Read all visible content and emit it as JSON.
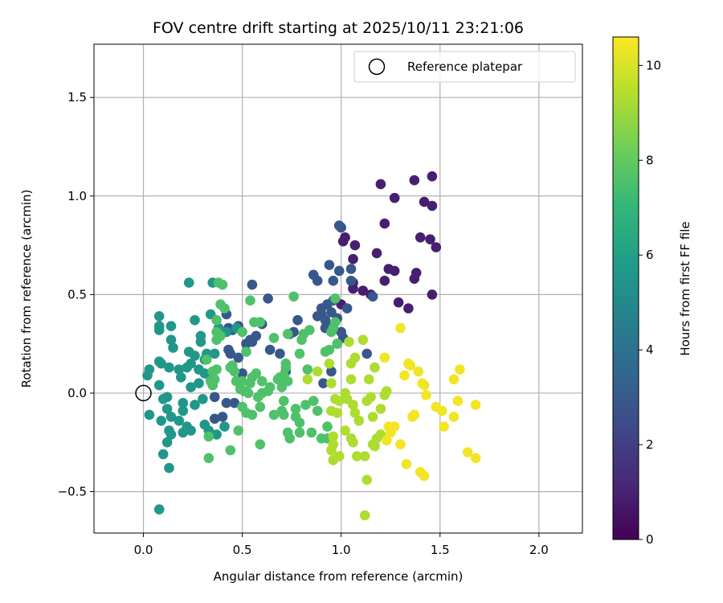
{
  "chart_data": {
    "type": "scatter",
    "title": "FOV centre drift starting at 2025/10/11 23:21:06",
    "xlabel": "Angular distance from reference (arcmin)",
    "ylabel": "Rotation from reference (arcmin)",
    "xlim": [
      -0.25,
      2.22
    ],
    "ylim": [
      -0.71,
      1.77
    ],
    "xticks": [
      0.0,
      0.5,
      1.0,
      1.5,
      2.0
    ],
    "xtick_labels": [
      "0.0",
      "0.5",
      "1.0",
      "1.5",
      "2.0"
    ],
    "yticks": [
      -0.5,
      0.0,
      0.5,
      1.0,
      1.5
    ],
    "ytick_labels": [
      "−0.5",
      "0.0",
      "0.5",
      "1.0",
      "1.5"
    ],
    "grid": true,
    "legend": {
      "position": "top-right",
      "entries": [
        "Reference platepar"
      ]
    },
    "reference_point": {
      "x": 0.0,
      "y": 0.0,
      "label": "Reference platepar"
    },
    "colorbar": {
      "label": "Hours from first FF file",
      "colormap": "viridis",
      "range": [
        0,
        10.6
      ],
      "ticks": [
        0,
        2,
        4,
        6,
        8,
        10
      ],
      "tick_labels": [
        "0",
        "2",
        "4",
        "6",
        "8",
        "10"
      ]
    },
    "viridis_stops": [
      "#440154",
      "#482878",
      "#3e4989",
      "#31688e",
      "#26828e",
      "#1f9e89",
      "#35b779",
      "#6ece58",
      "#b5de2b",
      "#fde725"
    ],
    "series": [
      {
        "name": "hours_0_2",
        "points": [
          [
            1.2,
            1.06
          ],
          [
            1.37,
            1.08
          ],
          [
            1.46,
            1.1
          ],
          [
            1.27,
            0.99
          ],
          [
            1.42,
            0.97
          ],
          [
            1.46,
            0.95
          ],
          [
            1.22,
            0.86
          ],
          [
            1.4,
            0.79
          ],
          [
            1.45,
            0.78
          ],
          [
            1.48,
            0.74
          ],
          [
            1.18,
            0.71
          ],
          [
            1.24,
            0.63
          ],
          [
            1.27,
            0.62
          ],
          [
            1.38,
            0.61
          ],
          [
            1.37,
            0.58
          ],
          [
            1.22,
            0.57
          ],
          [
            1.06,
            0.68
          ],
          [
            1.07,
            0.75
          ],
          [
            1.02,
            0.79
          ],
          [
            1.01,
            0.77
          ],
          [
            1.06,
            0.56
          ],
          [
            1.06,
            0.53
          ],
          [
            1.11,
            0.52
          ],
          [
            1.15,
            0.5
          ],
          [
            1.29,
            0.46
          ],
          [
            1.34,
            0.43
          ],
          [
            1.46,
            0.5
          ],
          [
            1.0,
            0.45
          ]
        ]
      },
      {
        "name": "hours_2_4",
        "points": [
          [
            0.99,
            0.85
          ],
          [
            1.0,
            0.84
          ],
          [
            1.05,
            0.63
          ],
          [
            0.86,
            0.6
          ],
          [
            0.94,
            0.65
          ],
          [
            0.88,
            0.57
          ],
          [
            0.96,
            0.57
          ],
          [
            0.99,
            0.62
          ],
          [
            1.05,
            0.57
          ],
          [
            0.96,
            0.47
          ],
          [
            0.93,
            0.45
          ],
          [
            0.9,
            0.43
          ],
          [
            0.95,
            0.41
          ],
          [
            0.9,
            0.4
          ],
          [
            0.88,
            0.39
          ],
          [
            0.92,
            0.37
          ],
          [
            0.98,
            0.38
          ],
          [
            0.96,
            0.34
          ],
          [
            0.92,
            0.33
          ],
          [
            1.0,
            0.31
          ],
          [
            1.01,
            0.28
          ],
          [
            0.98,
            0.25
          ],
          [
            1.03,
            0.43
          ],
          [
            1.16,
            0.49
          ],
          [
            1.13,
            0.2
          ],
          [
            0.63,
            0.48
          ],
          [
            0.55,
            0.55
          ],
          [
            0.78,
            0.37
          ],
          [
            0.57,
            0.29
          ],
          [
            0.54,
            0.27
          ],
          [
            0.52,
            0.25
          ],
          [
            0.48,
            0.34
          ],
          [
            0.64,
            0.22
          ],
          [
            0.69,
            0.2
          ],
          [
            0.72,
            0.11
          ],
          [
            0.5,
            0.1
          ],
          [
            0.47,
            0.06
          ],
          [
            0.6,
            0.35
          ],
          [
            0.95,
            0.11
          ],
          [
            0.91,
            0.05
          ],
          [
            0.76,
            0.31
          ],
          [
            0.74,
            0.3
          ],
          [
            0.43,
            0.33
          ],
          [
            0.45,
            0.32
          ],
          [
            0.42,
            0.4
          ],
          [
            0.55,
            0.26
          ],
          [
            0.44,
            0.2
          ],
          [
            0.48,
            0.18
          ],
          [
            0.43,
            0.22
          ],
          [
            0.46,
            -0.05
          ],
          [
            0.36,
            -0.13
          ],
          [
            0.4,
            -0.12
          ],
          [
            0.42,
            -0.05
          ],
          [
            0.36,
            -0.02
          ]
        ]
      },
      {
        "name": "hours_4_6",
        "points": [
          [
            0.23,
            0.56
          ],
          [
            0.35,
            0.56
          ],
          [
            0.26,
            0.37
          ],
          [
            0.08,
            0.39
          ],
          [
            0.08,
            0.34
          ],
          [
            0.08,
            0.32
          ],
          [
            0.14,
            0.34
          ],
          [
            0.34,
            0.4
          ],
          [
            0.38,
            0.33
          ],
          [
            0.42,
            0.31
          ],
          [
            0.47,
            0.33
          ],
          [
            0.29,
            0.26
          ],
          [
            0.14,
            0.27
          ],
          [
            0.15,
            0.23
          ],
          [
            0.23,
            0.21
          ],
          [
            0.36,
            0.2
          ],
          [
            0.26,
            0.19
          ],
          [
            0.31,
            0.17
          ],
          [
            0.32,
            0.2
          ],
          [
            0.08,
            0.16
          ],
          [
            0.09,
            0.15
          ],
          [
            0.24,
            0.15
          ],
          [
            0.18,
            0.12
          ],
          [
            0.22,
            0.13
          ],
          [
            0.28,
            0.12
          ],
          [
            0.31,
            0.1
          ],
          [
            0.13,
            0.13
          ],
          [
            0.03,
            0.12
          ],
          [
            0.02,
            0.09
          ],
          [
            0.19,
            0.08
          ],
          [
            0.34,
            0.08
          ],
          [
            0.08,
            0.04
          ],
          [
            0.35,
            0.04
          ],
          [
            0.24,
            0.03
          ],
          [
            0.28,
            0.05
          ],
          [
            0.12,
            -0.02
          ],
          [
            0.1,
            -0.03
          ],
          [
            0.3,
            -0.03
          ],
          [
            0.2,
            -0.05
          ],
          [
            0.26,
            -0.06
          ],
          [
            0.03,
            -0.11
          ],
          [
            0.14,
            -0.12
          ],
          [
            0.12,
            -0.08
          ],
          [
            0.2,
            -0.09
          ],
          [
            0.18,
            -0.14
          ],
          [
            0.22,
            -0.17
          ],
          [
            0.24,
            -0.19
          ],
          [
            0.2,
            -0.2
          ],
          [
            0.13,
            -0.19
          ],
          [
            0.14,
            -0.21
          ],
          [
            0.09,
            -0.14
          ],
          [
            0.12,
            -0.25
          ],
          [
            0.1,
            -0.31
          ],
          [
            0.13,
            -0.38
          ],
          [
            0.31,
            -0.16
          ],
          [
            0.33,
            -0.19
          ],
          [
            0.41,
            -0.17
          ],
          [
            0.37,
            -0.21
          ],
          [
            0.08,
            -0.59
          ],
          [
            0.29,
            0.29
          ]
        ]
      },
      {
        "name": "hours_6_8",
        "points": [
          [
            0.38,
            0.56
          ],
          [
            0.4,
            0.55
          ],
          [
            0.39,
            0.45
          ],
          [
            0.41,
            0.43
          ],
          [
            0.37,
            0.37
          ],
          [
            0.37,
            0.31
          ],
          [
            0.39,
            0.29
          ],
          [
            0.37,
            0.27
          ],
          [
            0.5,
            0.31
          ],
          [
            0.52,
            0.21
          ],
          [
            0.32,
            0.17
          ],
          [
            0.35,
            0.11
          ],
          [
            0.36,
            0.07
          ],
          [
            0.37,
            0.12
          ],
          [
            0.45,
            0.14
          ],
          [
            0.46,
            0.11
          ],
          [
            0.47,
            0.06
          ],
          [
            0.44,
            0.13
          ],
          [
            0.5,
            0.06
          ],
          [
            0.49,
            0.02
          ],
          [
            0.51,
            0.01
          ],
          [
            0.34,
            0.06
          ],
          [
            0.35,
            0.04
          ],
          [
            0.55,
            0.08
          ],
          [
            0.57,
            0.1
          ],
          [
            0.54,
            0.05
          ],
          [
            0.53,
            0.0
          ],
          [
            0.5,
            -0.07
          ],
          [
            0.52,
            -0.1
          ],
          [
            0.55,
            -0.11
          ],
          [
            0.58,
            -0.02
          ],
          [
            0.59,
            -0.07
          ],
          [
            0.59,
            -0.26
          ],
          [
            0.48,
            -0.19
          ],
          [
            0.44,
            -0.29
          ],
          [
            0.33,
            -0.22
          ],
          [
            0.33,
            -0.33
          ],
          [
            0.54,
            0.47
          ],
          [
            0.56,
            0.36
          ],
          [
            0.59,
            0.36
          ],
          [
            0.66,
            0.28
          ],
          [
            0.73,
            0.3
          ],
          [
            0.72,
            0.15
          ],
          [
            0.79,
            0.2
          ],
          [
            0.72,
            0.13
          ],
          [
            0.71,
            0.09
          ],
          [
            0.69,
            0.08
          ],
          [
            0.68,
            0.07
          ],
          [
            0.6,
            0.06
          ],
          [
            0.6,
            0.0
          ],
          [
            0.63,
            0.01
          ],
          [
            0.64,
            0.03
          ],
          [
            0.7,
            0.03
          ],
          [
            0.73,
            0.06
          ],
          [
            0.71,
            -0.04
          ],
          [
            0.7,
            -0.09
          ],
          [
            0.71,
            -0.11
          ],
          [
            0.66,
            -0.11
          ],
          [
            0.73,
            -0.2
          ],
          [
            0.74,
            -0.23
          ],
          [
            0.77,
            -0.08
          ],
          [
            0.77,
            -0.12
          ],
          [
            0.79,
            -0.15
          ],
          [
            0.79,
            -0.2
          ],
          [
            0.82,
            -0.06
          ],
          [
            0.76,
            0.49
          ],
          [
            0.81,
            0.3
          ],
          [
            0.84,
            0.32
          ],
          [
            0.8,
            0.27
          ],
          [
            0.83,
            0.12
          ],
          [
            0.85,
            -0.2
          ],
          [
            0.86,
            -0.04
          ],
          [
            0.88,
            -0.09
          ],
          [
            0.9,
            -0.23
          ],
          [
            0.93,
            -0.23
          ],
          [
            0.93,
            -0.17
          ],
          [
            0.94,
            0.22
          ],
          [
            0.92,
            0.21
          ],
          [
            0.95,
            0.31
          ],
          [
            0.96,
            0.33
          ],
          [
            0.97,
            0.48
          ],
          [
            0.97,
            0.36
          ],
          [
            0.98,
            0.25
          ]
        ]
      },
      {
        "name": "hours_8_10",
        "points": [
          [
            0.94,
            0.15
          ],
          [
            0.95,
            0.05
          ],
          [
            0.97,
            -0.03
          ],
          [
            0.99,
            -0.04
          ],
          [
            0.95,
            -0.09
          ],
          [
            0.98,
            -0.1
          ],
          [
            0.96,
            -0.22
          ],
          [
            0.96,
            -0.26
          ],
          [
            0.95,
            -0.29
          ],
          [
            0.96,
            -0.34
          ],
          [
            0.99,
            -0.32
          ],
          [
            1.02,
            0.0
          ],
          [
            1.03,
            -0.03
          ],
          [
            1.05,
            0.07
          ],
          [
            1.06,
            -0.06
          ],
          [
            1.07,
            -0.1
          ],
          [
            1.09,
            -0.14
          ],
          [
            1.05,
            -0.23
          ],
          [
            1.06,
            -0.25
          ],
          [
            1.02,
            -0.19
          ],
          [
            1.08,
            -0.32
          ],
          [
            1.12,
            -0.32
          ],
          [
            1.13,
            -0.44
          ],
          [
            1.12,
            -0.62
          ],
          [
            1.16,
            -0.26
          ],
          [
            1.17,
            -0.27
          ],
          [
            1.18,
            -0.23
          ],
          [
            1.2,
            -0.21
          ],
          [
            1.16,
            -0.12
          ],
          [
            1.2,
            -0.08
          ],
          [
            1.22,
            -0.01
          ],
          [
            1.23,
            0.01
          ],
          [
            1.17,
            0.13
          ],
          [
            1.14,
            0.07
          ],
          [
            1.11,
            0.27
          ],
          [
            1.05,
            0.15
          ],
          [
            1.07,
            0.18
          ],
          [
            1.13,
            -0.04
          ],
          [
            1.15,
            -0.02
          ],
          [
            1.04,
            0.26
          ],
          [
            0.83,
            0.07
          ],
          [
            0.88,
            0.11
          ]
        ]
      },
      {
        "name": "hours_10_plus",
        "points": [
          [
            1.22,
            0.18
          ],
          [
            1.3,
            0.33
          ],
          [
            1.35,
            0.14
          ],
          [
            1.32,
            0.09
          ],
          [
            1.34,
            0.15
          ],
          [
            1.39,
            0.11
          ],
          [
            1.41,
            0.05
          ],
          [
            1.42,
            0.04
          ],
          [
            1.43,
            -0.01
          ],
          [
            1.36,
            -0.12
          ],
          [
            1.37,
            -0.11
          ],
          [
            1.24,
            -0.17
          ],
          [
            1.27,
            -0.17
          ],
          [
            1.25,
            -0.2
          ],
          [
            1.23,
            -0.24
          ],
          [
            1.3,
            -0.26
          ],
          [
            1.33,
            -0.36
          ],
          [
            1.4,
            -0.4
          ],
          [
            1.42,
            -0.42
          ],
          [
            1.48,
            -0.07
          ],
          [
            1.51,
            -0.09
          ],
          [
            1.52,
            -0.17
          ],
          [
            1.57,
            -0.12
          ],
          [
            1.57,
            0.07
          ],
          [
            1.6,
            0.12
          ],
          [
            1.59,
            -0.04
          ],
          [
            1.64,
            -0.3
          ],
          [
            1.68,
            -0.33
          ],
          [
            1.68,
            -0.06
          ]
        ]
      }
    ]
  }
}
